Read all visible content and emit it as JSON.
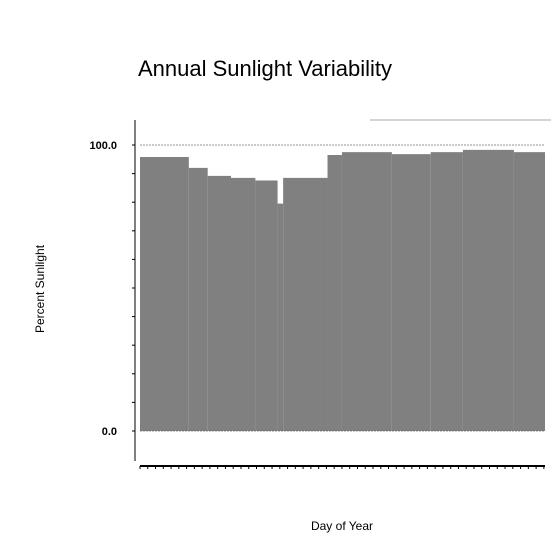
{
  "chart_data": {
    "type": "area",
    "title": "Annual Sunlight Variability",
    "xlabel": "Day of Year",
    "ylabel": "Percent Sunlight",
    "ylim": [
      0,
      100
    ],
    "y_ticks": [
      {
        "value": 0,
        "label": "0.0"
      },
      {
        "value": 100,
        "label": "100.0"
      }
    ],
    "x_range": [
      1,
      366
    ],
    "series": [
      {
        "values": [
          {
            "x_start": 1,
            "x_end": 45,
            "y": 95.8
          },
          {
            "x_start": 45,
            "x_end": 62,
            "y": 92.0
          },
          {
            "x_start": 62,
            "x_end": 83,
            "y": 89.2
          },
          {
            "x_start": 83,
            "x_end": 105,
            "y": 88.5
          },
          {
            "x_start": 105,
            "x_end": 125,
            "y": 87.6
          },
          {
            "x_start": 125,
            "x_end": 130,
            "y": 79.5
          },
          {
            "x_start": 130,
            "x_end": 170,
            "y": 88.5
          },
          {
            "x_start": 170,
            "x_end": 183,
            "y": 96.5
          },
          {
            "x_start": 183,
            "x_end": 228,
            "y": 97.5
          },
          {
            "x_start": 228,
            "x_end": 263,
            "y": 96.8
          },
          {
            "x_start": 263,
            "x_end": 292,
            "y": 97.5
          },
          {
            "x_start": 292,
            "x_end": 338,
            "y": 98.3
          },
          {
            "x_start": 338,
            "x_end": 366,
            "y": 97.5
          }
        ],
        "color": "#808080"
      }
    ],
    "grid": false,
    "reference_lines": [
      0,
      100
    ]
  }
}
